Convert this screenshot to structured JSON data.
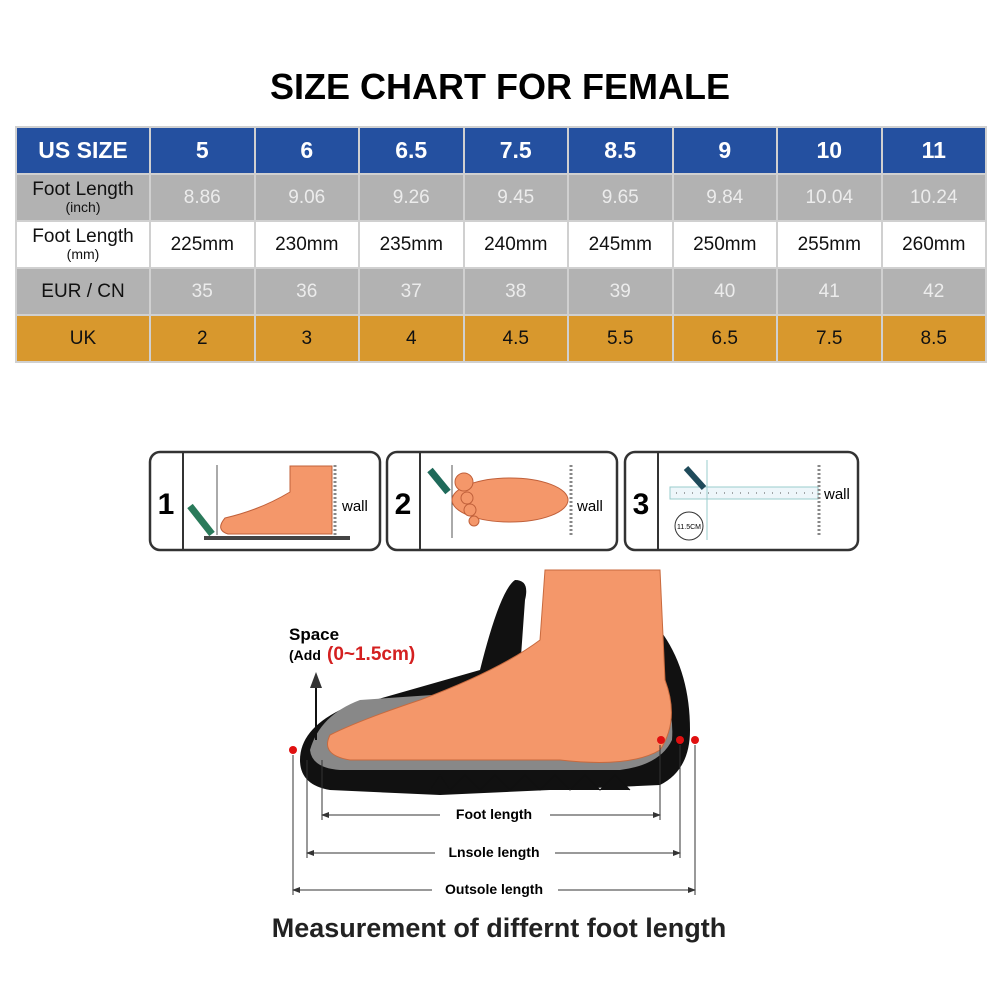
{
  "title": "SIZE CHART FOR FEMALE",
  "table": {
    "header": {
      "label": "US SIZE",
      "values": [
        "5",
        "6",
        "6.5",
        "7.5",
        "8.5",
        "9",
        "10",
        "11"
      ]
    },
    "foot_inch": {
      "label": "Foot Length",
      "sub": "(inch)",
      "values": [
        "8.86",
        "9.06",
        "9.26",
        "9.45",
        "9.65",
        "9.84",
        "10.04",
        "10.24"
      ]
    },
    "foot_mm": {
      "label": "Foot Length",
      "sub": "(mm)",
      "values": [
        "225mm",
        "230mm",
        "235mm",
        "240mm",
        "245mm",
        "250mm",
        "255mm",
        "260mm"
      ]
    },
    "eur": {
      "label": "EUR / CN",
      "values": [
        "35",
        "36",
        "37",
        "38",
        "39",
        "40",
        "41",
        "42"
      ]
    },
    "uk": {
      "label": "UK",
      "values": [
        "2",
        "3",
        "4",
        "4.5",
        "5.5",
        "6.5",
        "7.5",
        "8.5"
      ]
    }
  },
  "colors": {
    "header": "#2450a0",
    "gray_row": "#b2b2b2",
    "uk_row": "#d8982d",
    "foot": "#f4976a"
  },
  "steps": [
    {
      "number": "1",
      "wall": "wall"
    },
    {
      "number": "2",
      "wall": "wall"
    },
    {
      "number": "3",
      "wall": "wall",
      "badge": "11.5CM"
    }
  ],
  "diagram": {
    "space": "Space",
    "add": "(Add",
    "range": "(0~1.5cm)",
    "foot_length": "Foot length",
    "insole_length": "Lnsole length",
    "outsole_length": "Outsole length",
    "caption": "Measurement of differnt foot length"
  }
}
